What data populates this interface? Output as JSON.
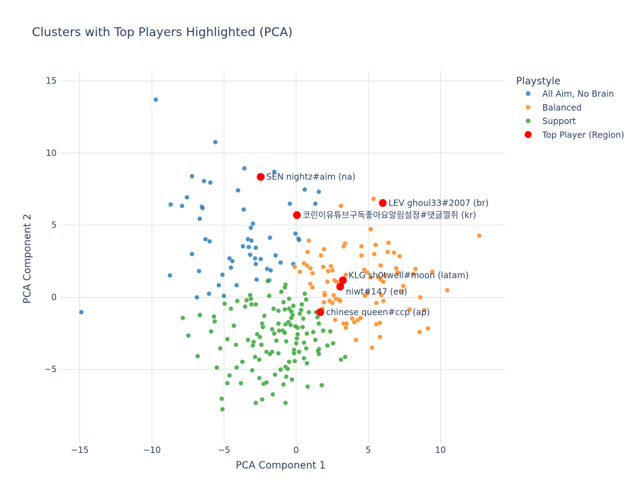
{
  "chart_data": {
    "type": "scatter",
    "title": "Clusters with Top Players Highlighted (PCA)",
    "xlabel": "PCA Component 1",
    "ylabel": "PCA Component 2",
    "xlim": [
      -16.3,
      14.45
    ],
    "ylim": [
      -10.1,
      15.7
    ],
    "xticks": [
      -15,
      -10,
      -5,
      0,
      5,
      10
    ],
    "yticks": [
      -5,
      0,
      5,
      10,
      15
    ],
    "xtick_labels": [
      "−15",
      "−10",
      "−5",
      "0",
      "5",
      "10"
    ],
    "ytick_labels": [
      "−5",
      "0",
      "5",
      "10",
      "15"
    ],
    "grid": true,
    "legend": {
      "title": "Playstyle",
      "placement": "right"
    },
    "series": [
      {
        "name": "All Aim, No Brain",
        "color": "#1f77b4",
        "points": [
          [
            -9.73,
            13.71
          ],
          [
            -5.6,
            10.76
          ],
          [
            -3.59,
            8.94
          ],
          [
            -1.52,
            8.7
          ],
          [
            -7.22,
            8.4
          ],
          [
            -6.39,
            8.06
          ],
          [
            -5.95,
            7.96
          ],
          [
            -4.03,
            7.42
          ],
          [
            0.59,
            7.47
          ],
          [
            1.57,
            7.32
          ],
          [
            -7.57,
            6.93
          ],
          [
            -8.7,
            6.44
          ],
          [
            -7.91,
            6.34
          ],
          [
            -6.54,
            6.29
          ],
          [
            -6.49,
            6.19
          ],
          [
            -3.64,
            6.09
          ],
          [
            -0.44,
            6.49
          ],
          [
            1.33,
            6.49
          ],
          [
            -6.68,
            5.45
          ],
          [
            -3.0,
            5.11
          ],
          [
            -3.14,
            4.82
          ],
          [
            -0.05,
            4.42
          ],
          [
            0.15,
            4.08
          ],
          [
            0.2,
            3.98
          ],
          [
            -1.82,
            4.13
          ],
          [
            -6.29,
            4.03
          ],
          [
            -6.0,
            3.88
          ],
          [
            -3.34,
            4.03
          ],
          [
            -3.1,
            3.93
          ],
          [
            -3.69,
            3.54
          ],
          [
            -3.29,
            3.49
          ],
          [
            -2.8,
            3.44
          ],
          [
            -7.22,
            3.0
          ],
          [
            -3.19,
            2.95
          ],
          [
            -1.43,
            2.9
          ],
          [
            -4.62,
            2.7
          ],
          [
            -4.42,
            2.51
          ],
          [
            -2.85,
            2.7
          ],
          [
            -2.46,
            2.65
          ],
          [
            -2.8,
            2.31
          ],
          [
            -1.08,
            2.41
          ],
          [
            -4.52,
            2.06
          ],
          [
            -0.2,
            2.31
          ],
          [
            -2.01,
            1.97
          ],
          [
            -1.77,
            1.87
          ],
          [
            -6.73,
            1.82
          ],
          [
            -8.75,
            1.52
          ],
          [
            -5.11,
            1.57
          ],
          [
            -2.75,
            1.23
          ],
          [
            -1.87,
            1.18
          ],
          [
            -5.36,
            0.84
          ],
          [
            -4.13,
            0.84
          ],
          [
            -6.88,
            0.0
          ],
          [
            -6.04,
            0.25
          ],
          [
            -5.01,
            0.1
          ],
          [
            -14.89,
            -1.03
          ]
        ]
      },
      {
        "name": "Balanced",
        "color": "#ff7f0e",
        "points": [
          [
            5.36,
            6.83
          ],
          [
            3.1,
            6.34
          ],
          [
            5.16,
            4.72
          ],
          [
            12.68,
            4.28
          ],
          [
            0.88,
            3.93
          ],
          [
            3.39,
            3.73
          ],
          [
            3.29,
            3.54
          ],
          [
            4.52,
            3.54
          ],
          [
            5.5,
            3.64
          ],
          [
            6.39,
            3.78
          ],
          [
            1.92,
            3.34
          ],
          [
            0.79,
            3.14
          ],
          [
            1.72,
            2.9
          ],
          [
            4.52,
            2.9
          ],
          [
            5.41,
            3.0
          ],
          [
            6.34,
            3.14
          ],
          [
            6.78,
            3.1
          ],
          [
            7.17,
            2.85
          ],
          [
            0.54,
            2.36
          ],
          [
            0.74,
            2.21
          ],
          [
            -0.1,
            2.11
          ],
          [
            1.87,
            2.11
          ],
          [
            2.41,
            2.16
          ],
          [
            0.98,
            2.01
          ],
          [
            2.21,
            1.82
          ],
          [
            2.51,
            1.87
          ],
          [
            5.85,
            2.21
          ],
          [
            6.93,
            2.01
          ],
          [
            8.26,
            1.97
          ],
          [
            0.25,
            1.77
          ],
          [
            1.13,
            1.67
          ],
          [
            4.72,
            1.92
          ],
          [
            4.91,
            1.72
          ],
          [
            7.03,
            1.72
          ],
          [
            8.11,
            1.62
          ],
          [
            9.43,
            1.77
          ],
          [
            3.44,
            1.57
          ],
          [
            5.16,
            1.38
          ],
          [
            5.7,
            1.38
          ],
          [
            6.14,
            1.52
          ],
          [
            2.16,
            1.08
          ],
          [
            2.65,
            1.18
          ],
          [
            2.8,
            1.08
          ],
          [
            0.98,
            0.93
          ],
          [
            1.13,
            0.69
          ],
          [
            5.85,
            1.23
          ],
          [
            6.04,
            1.08
          ],
          [
            7.32,
            0.44
          ],
          [
            10.47,
            0.49
          ],
          [
            4.96,
            0.29
          ],
          [
            1.97,
            0.29
          ],
          [
            1.97,
            0.15
          ],
          [
            4.77,
            0.1
          ],
          [
            5.9,
            0.15
          ],
          [
            2.6,
            0.15
          ],
          [
            2.75,
            -0.1
          ],
          [
            2.95,
            -0.15
          ],
          [
            3.05,
            -0.25
          ],
          [
            2.31,
            -0.25
          ],
          [
            2.51,
            -0.39
          ],
          [
            1.92,
            -0.34
          ],
          [
            8.6,
            0.0
          ],
          [
            5.55,
            -0.39
          ],
          [
            6.04,
            -0.25
          ],
          [
            1.82,
            -0.79
          ],
          [
            7.86,
            -0.84
          ],
          [
            8.89,
            -0.88
          ],
          [
            3.88,
            -1.47
          ],
          [
            4.03,
            -1.72
          ],
          [
            4.28,
            -1.57
          ],
          [
            4.47,
            -1.43
          ],
          [
            2.7,
            -1.57
          ],
          [
            3.29,
            -1.82
          ],
          [
            3.49,
            -1.82
          ],
          [
            3.44,
            -2.11
          ],
          [
            5.55,
            -1.87
          ],
          [
            5.8,
            -1.77
          ],
          [
            9.14,
            -2.16
          ],
          [
            8.55,
            -2.41
          ],
          [
            5.8,
            -2.75
          ],
          [
            4.13,
            -2.95
          ],
          [
            5.26,
            -3.49
          ],
          [
            7.42,
            0.79
          ]
        ]
      },
      {
        "name": "Support",
        "color": "#2ca02c",
        "points": [
          [
            -1.97,
            1.13
          ],
          [
            -0.74,
            0.88
          ],
          [
            -0.79,
            0.69
          ],
          [
            -1.03,
            0.39
          ],
          [
            0.59,
            0.25
          ],
          [
            -1.87,
            0.1
          ],
          [
            -0.49,
            -0.1
          ],
          [
            0.69,
            -0.15
          ],
          [
            -3.19,
            0.15
          ],
          [
            -3.14,
            -0.1
          ],
          [
            -3.44,
            -0.2
          ],
          [
            -4.08,
            -0.25
          ],
          [
            -4.96,
            -0.44
          ],
          [
            -3.1,
            -0.49
          ],
          [
            -2.8,
            -0.49
          ],
          [
            -3.54,
            -0.64
          ],
          [
            -0.88,
            -0.34
          ],
          [
            0.39,
            -0.49
          ],
          [
            -0.2,
            -0.59
          ],
          [
            -1.57,
            -0.79
          ],
          [
            -1.23,
            -0.93
          ],
          [
            -0.79,
            -0.84
          ],
          [
            -0.49,
            -0.79
          ],
          [
            -0.34,
            -0.98
          ],
          [
            0.34,
            -0.88
          ],
          [
            0.25,
            -1.13
          ],
          [
            0.88,
            -1.03
          ],
          [
            1.38,
            -1.03
          ],
          [
            -4.52,
            -0.79
          ],
          [
            -6.68,
            -1.23
          ],
          [
            -5.7,
            -1.33
          ],
          [
            -7.86,
            -1.43
          ],
          [
            -2.21,
            -1.28
          ],
          [
            -0.25,
            -1.23
          ],
          [
            -0.34,
            -1.43
          ],
          [
            0.49,
            -1.47
          ],
          [
            1.47,
            -1.38
          ],
          [
            -5.65,
            -1.67
          ],
          [
            -4.32,
            -1.97
          ],
          [
            -2.36,
            -1.82
          ],
          [
            -2.31,
            -2.06
          ],
          [
            -1.23,
            -1.82
          ],
          [
            -0.74,
            -1.87
          ],
          [
            -0.54,
            -1.72
          ],
          [
            -0.39,
            -1.92
          ],
          [
            0.1,
            -2.11
          ],
          [
            0.44,
            -2.06
          ],
          [
            1.57,
            -1.82
          ],
          [
            -1.67,
            -2.21
          ],
          [
            -1.18,
            -2.31
          ],
          [
            -0.93,
            -2.31
          ],
          [
            -0.79,
            -2.46
          ],
          [
            -1.52,
            -2.51
          ],
          [
            -0.05,
            -2.01
          ],
          [
            0.74,
            -2.51
          ],
          [
            1.18,
            -2.41
          ],
          [
            1.87,
            -2.31
          ],
          [
            2.36,
            -2.36
          ],
          [
            -5.9,
            -2.36
          ],
          [
            -7.47,
            -2.65
          ],
          [
            -2.7,
            -2.56
          ],
          [
            -2.51,
            -2.75
          ],
          [
            0.1,
            -2.56
          ],
          [
            0.05,
            -2.85
          ],
          [
            -4.77,
            -2.9
          ],
          [
            -3.34,
            -2.95
          ],
          [
            -2.95,
            -3.1
          ],
          [
            -1.38,
            -3.0
          ],
          [
            -0.69,
            -3.05
          ],
          [
            1.33,
            -2.95
          ],
          [
            -4.18,
            -3.29
          ],
          [
            -3.0,
            -3.34
          ],
          [
            -2.41,
            -3.29
          ],
          [
            0.0,
            -3.19
          ],
          [
            0.54,
            -3.14
          ],
          [
            2.56,
            -3.19
          ],
          [
            2.16,
            -3.34
          ],
          [
            -5.26,
            -3.54
          ],
          [
            0.69,
            -3.54
          ],
          [
            1.57,
            -3.59
          ],
          [
            1.52,
            -3.73
          ],
          [
            -2.06,
            -3.78
          ],
          [
            -1.67,
            -3.78
          ],
          [
            -1.82,
            -3.93
          ],
          [
            -1.23,
            -3.88
          ],
          [
            -0.15,
            -3.64
          ],
          [
            0.2,
            -3.78
          ],
          [
            -0.15,
            -3.88
          ],
          [
            1.57,
            -3.93
          ],
          [
            -6.83,
            -4.08
          ],
          [
            -2.85,
            -4.13
          ],
          [
            -2.56,
            -4.32
          ],
          [
            0.54,
            -4.23
          ],
          [
            3.39,
            -4.13
          ],
          [
            3.1,
            -4.32
          ],
          [
            -3.73,
            -4.47
          ],
          [
            -0.49,
            -4.47
          ],
          [
            -0.1,
            -4.42
          ],
          [
            0.74,
            -4.57
          ],
          [
            -5.5,
            -4.87
          ],
          [
            -4.13,
            -4.87
          ],
          [
            -0.74,
            -4.82
          ],
          [
            -0.59,
            -4.96
          ],
          [
            -1.08,
            -5.01
          ],
          [
            -3.05,
            -5.06
          ],
          [
            -4.62,
            -5.41
          ],
          [
            -1.47,
            -5.36
          ],
          [
            -2.56,
            -5.6
          ],
          [
            -0.69,
            -5.5
          ],
          [
            -0.29,
            -5.7
          ],
          [
            -4.77,
            -5.95
          ],
          [
            -3.83,
            -5.95
          ],
          [
            -2.26,
            -6.0
          ],
          [
            -2.06,
            -5.9
          ],
          [
            -0.88,
            -6.04
          ],
          [
            0.79,
            -6.19
          ],
          [
            1.77,
            -6.09
          ],
          [
            -1.62,
            -6.73
          ],
          [
            -5.16,
            -7.03
          ],
          [
            -2.36,
            -7.08
          ],
          [
            -2.8,
            -7.32
          ],
          [
            -0.74,
            -7.32
          ],
          [
            -5.11,
            -7.76
          ]
        ]
      },
      {
        "name": "Top Player (Region)",
        "color": "#ff0000",
        "points": [
          [
            -2.46,
            8.35
          ],
          [
            0.05,
            5.7
          ],
          [
            6.0,
            6.54
          ],
          [
            3.24,
            1.18
          ],
          [
            3.05,
            0.74
          ],
          [
            1.67,
            -1.03
          ]
        ],
        "labels": [
          "SEN nightz#aim (na)",
          "코린이유튜브구독좋아요알림설정#댓글껄쥐 (kr)",
          "LEV ghoul33#2007 (br)",
          "KLG sh0twell#moon (latam)",
          "niwt#147 (eu)",
          "chinese queen#ccp (ap)"
        ]
      }
    ]
  }
}
